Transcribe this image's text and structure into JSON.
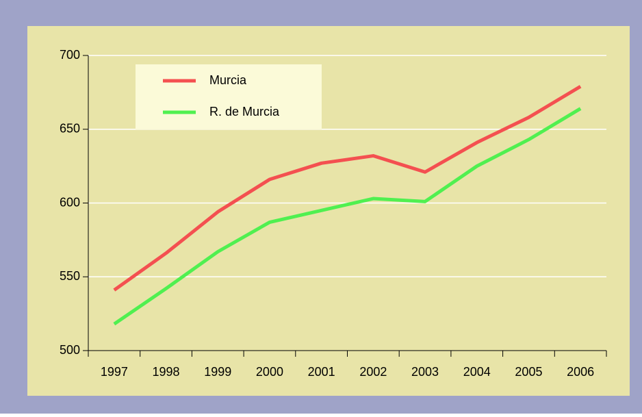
{
  "chart_data": {
    "type": "line",
    "categories": [
      "1997",
      "1998",
      "1999",
      "2000",
      "2001",
      "2002",
      "2003",
      "2004",
      "2005",
      "2006"
    ],
    "series": [
      {
        "name": "Murcia",
        "color": "#f45050",
        "values": [
          541,
          566,
          594,
          616,
          627,
          632,
          621,
          641,
          658,
          679
        ]
      },
      {
        "name": "R. de Murcia",
        "color": "#50f050",
        "values": [
          518,
          542,
          567,
          587,
          595,
          603,
          601,
          625,
          643,
          664
        ]
      }
    ],
    "ylim": [
      500,
      700
    ],
    "yticks": [
      500,
      550,
      600,
      650,
      700
    ],
    "grid": true,
    "legend": "upper left"
  }
}
